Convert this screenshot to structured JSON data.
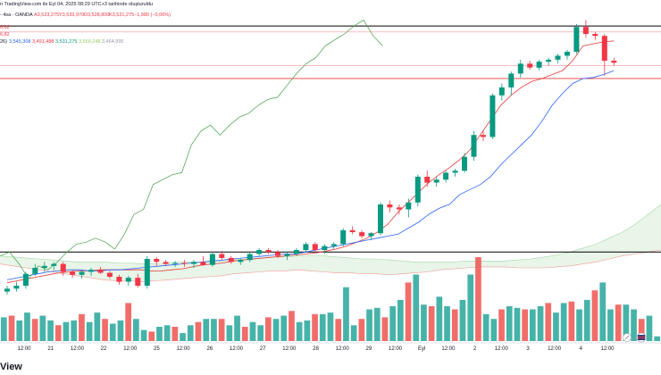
{
  "header": {
    "line0_prefix": "n TradingView.com ile Eyl 04, 2025 08:29 UTC+3 tarihinde oluşturuldu",
    "line1": [
      "- 4sa · OANDA",
      "A3,523,275",
      "Y3,533,970",
      "D3,528,800",
      "K3,521,275",
      "−1,980 (−0,06%)"
    ],
    "line2": "6,82",
    "line3": "6,82",
    "line4": [
      "26)",
      "3,545,308",
      "3,491,488",
      "3,531,275",
      "3,558,248",
      "3,464,995"
    ]
  },
  "brand_text": "View",
  "chart_data": {
    "type": "candlestick",
    "x_tick_labels": [
      "12:00",
      "21",
      "12:00",
      "22",
      "12:00",
      "25",
      "12:00",
      "26",
      "12:00",
      "27",
      "12:00",
      "28",
      "12:00",
      "29",
      "12:00",
      "Eyl",
      "12:00",
      "2",
      "12:00",
      "3",
      "12:00",
      "4",
      "12:00"
    ],
    "y_range": [
      3300,
      3590
    ],
    "horizontal_lines": [
      {
        "value": 3580,
        "color": "#000000"
      },
      {
        "value": 3574,
        "color": "#f5a9af"
      },
      {
        "value": 3540,
        "color": "#f5a9af"
      },
      {
        "value": 3527,
        "color": "#e53935"
      },
      {
        "value": 3352,
        "color": "#000000"
      }
    ],
    "candles": [
      {
        "o": 3312,
        "h": 3318,
        "l": 3309,
        "c": 3315
      },
      {
        "o": 3315,
        "h": 3322,
        "l": 3312,
        "c": 3318
      },
      {
        "o": 3318,
        "h": 3332,
        "l": 3315,
        "c": 3330
      },
      {
        "o": 3330,
        "h": 3340,
        "l": 3328,
        "c": 3336
      },
      {
        "o": 3336,
        "h": 3342,
        "l": 3332,
        "c": 3338
      },
      {
        "o": 3338,
        "h": 3342,
        "l": 3334,
        "c": 3340
      },
      {
        "o": 3340,
        "h": 3342,
        "l": 3328,
        "c": 3332
      },
      {
        "o": 3332,
        "h": 3334,
        "l": 3326,
        "c": 3329
      },
      {
        "o": 3329,
        "h": 3334,
        "l": 3325,
        "c": 3332
      },
      {
        "o": 3332,
        "h": 3336,
        "l": 3328,
        "c": 3334
      },
      {
        "o": 3334,
        "h": 3337,
        "l": 3330,
        "c": 3331
      },
      {
        "o": 3331,
        "h": 3333,
        "l": 3325,
        "c": 3327
      },
      {
        "o": 3327,
        "h": 3329,
        "l": 3319,
        "c": 3322
      },
      {
        "o": 3322,
        "h": 3328,
        "l": 3318,
        "c": 3326
      },
      {
        "o": 3326,
        "h": 3330,
        "l": 3316,
        "c": 3318
      },
      {
        "o": 3318,
        "h": 3348,
        "l": 3315,
        "c": 3345
      },
      {
        "o": 3345,
        "h": 3347,
        "l": 3338,
        "c": 3342
      },
      {
        "o": 3342,
        "h": 3344,
        "l": 3338,
        "c": 3340
      },
      {
        "o": 3340,
        "h": 3343,
        "l": 3337,
        "c": 3341
      },
      {
        "o": 3341,
        "h": 3344,
        "l": 3337,
        "c": 3340
      },
      {
        "o": 3340,
        "h": 3344,
        "l": 3336,
        "c": 3342
      },
      {
        "o": 3342,
        "h": 3348,
        "l": 3338,
        "c": 3339
      },
      {
        "o": 3339,
        "h": 3352,
        "l": 3337,
        "c": 3350
      },
      {
        "o": 3350,
        "h": 3353,
        "l": 3344,
        "c": 3346
      },
      {
        "o": 3346,
        "h": 3348,
        "l": 3340,
        "c": 3342
      },
      {
        "o": 3342,
        "h": 3346,
        "l": 3339,
        "c": 3344
      },
      {
        "o": 3344,
        "h": 3352,
        "l": 3342,
        "c": 3350
      },
      {
        "o": 3350,
        "h": 3356,
        "l": 3348,
        "c": 3354
      },
      {
        "o": 3354,
        "h": 3356,
        "l": 3350,
        "c": 3352
      },
      {
        "o": 3352,
        "h": 3354,
        "l": 3346,
        "c": 3348
      },
      {
        "o": 3348,
        "h": 3352,
        "l": 3344,
        "c": 3350
      },
      {
        "o": 3350,
        "h": 3356,
        "l": 3348,
        "c": 3354
      },
      {
        "o": 3354,
        "h": 3362,
        "l": 3352,
        "c": 3360
      },
      {
        "o": 3360,
        "h": 3362,
        "l": 3352,
        "c": 3354
      },
      {
        "o": 3354,
        "h": 3360,
        "l": 3350,
        "c": 3358
      },
      {
        "o": 3358,
        "h": 3362,
        "l": 3355,
        "c": 3360
      },
      {
        "o": 3360,
        "h": 3376,
        "l": 3358,
        "c": 3374
      },
      {
        "o": 3374,
        "h": 3378,
        "l": 3370,
        "c": 3372
      },
      {
        "o": 3372,
        "h": 3374,
        "l": 3366,
        "c": 3368
      },
      {
        "o": 3368,
        "h": 3372,
        "l": 3364,
        "c": 3371
      },
      {
        "o": 3371,
        "h": 3402,
        "l": 3369,
        "c": 3400
      },
      {
        "o": 3400,
        "h": 3404,
        "l": 3392,
        "c": 3397
      },
      {
        "o": 3397,
        "h": 3400,
        "l": 3390,
        "c": 3395
      },
      {
        "o": 3395,
        "h": 3406,
        "l": 3387,
        "c": 3402
      },
      {
        "o": 3402,
        "h": 3430,
        "l": 3398,
        "c": 3428
      },
      {
        "o": 3428,
        "h": 3434,
        "l": 3418,
        "c": 3422
      },
      {
        "o": 3422,
        "h": 3428,
        "l": 3418,
        "c": 3425
      },
      {
        "o": 3425,
        "h": 3434,
        "l": 3422,
        "c": 3432
      },
      {
        "o": 3432,
        "h": 3436,
        "l": 3428,
        "c": 3434
      },
      {
        "o": 3434,
        "h": 3452,
        "l": 3432,
        "c": 3448
      },
      {
        "o": 3448,
        "h": 3474,
        "l": 3444,
        "c": 3470
      },
      {
        "o": 3470,
        "h": 3474,
        "l": 3464,
        "c": 3468
      },
      {
        "o": 3468,
        "h": 3512,
        "l": 3466,
        "c": 3510
      },
      {
        "o": 3510,
        "h": 3522,
        "l": 3505,
        "c": 3518
      },
      {
        "o": 3518,
        "h": 3534,
        "l": 3510,
        "c": 3532
      },
      {
        "o": 3532,
        "h": 3546,
        "l": 3528,
        "c": 3542
      },
      {
        "o": 3542,
        "h": 3545,
        "l": 3536,
        "c": 3538
      },
      {
        "o": 3538,
        "h": 3546,
        "l": 3535,
        "c": 3544
      },
      {
        "o": 3544,
        "h": 3548,
        "l": 3540,
        "c": 3546
      },
      {
        "o": 3546,
        "h": 3552,
        "l": 3542,
        "c": 3550
      },
      {
        "o": 3550,
        "h": 3556,
        "l": 3546,
        "c": 3554
      },
      {
        "o": 3554,
        "h": 3582,
        "l": 3552,
        "c": 3579
      },
      {
        "o": 3579,
        "h": 3586,
        "l": 3568,
        "c": 3572
      },
      {
        "o": 3572,
        "h": 3574,
        "l": 3566,
        "c": 3570
      },
      {
        "o": 3570,
        "h": 3572,
        "l": 3530,
        "c": 3545
      },
      {
        "o": 3545,
        "h": 3548,
        "l": 3540,
        "c": 3543
      }
    ],
    "volumes": [
      15,
      16,
      13,
      18,
      14,
      16,
      13,
      10,
      12,
      13,
      17,
      12,
      18,
      14,
      11,
      13,
      24,
      14,
      7,
      6,
      9,
      10,
      9,
      5,
      10,
      12,
      14,
      14,
      14,
      10,
      16,
      9,
      12,
      10,
      15,
      14,
      16,
      19,
      12,
      13,
      17,
      17,
      18,
      14,
      34,
      10,
      14,
      20,
      21,
      15,
      22,
      26,
      37,
      42,
      23,
      22,
      28,
      22,
      20,
      26,
      42,
      53,
      17,
      14,
      20,
      22,
      21,
      20,
      20,
      22,
      24,
      18,
      24,
      25,
      20,
      26,
      32,
      37,
      20,
      23,
      23,
      20,
      14,
      16,
      3
    ],
    "baseline_line": [
      3321,
      3323,
      3325,
      3327,
      3329,
      3331,
      3332,
      3333,
      3333,
      3334,
      3334,
      3334,
      3334,
      3334,
      3333,
      3333,
      3334,
      3335,
      3337,
      3339,
      3340,
      3341,
      3343,
      3344,
      3345,
      3346,
      3347,
      3348,
      3349,
      3350,
      3351,
      3353,
      3355,
      3358,
      3362,
      3366,
      3372,
      3380,
      3392,
      3402,
      3412,
      3422,
      3430,
      3437,
      3445,
      3455,
      3470,
      3485,
      3500,
      3510,
      3518,
      3524,
      3527,
      3531,
      3535,
      3545,
      3560,
      3562,
      3564,
      3565
    ],
    "conversion_line": [
      3324,
      3326,
      3328,
      3330,
      3332,
      3333,
      3334,
      3334,
      3333,
      3333,
      3334,
      3334,
      3335,
      3336,
      3337,
      3338,
      3339,
      3340,
      3341,
      3342,
      3343,
      3344,
      3345,
      3346,
      3347,
      3348,
      3349,
      3350,
      3350,
      3352,
      3354,
      3356,
      3358,
      3360,
      3362,
      3364,
      3366,
      3368,
      3370,
      3376,
      3382,
      3390,
      3396,
      3400,
      3410,
      3415,
      3420,
      3428,
      3440,
      3450,
      3460,
      3470,
      3484,
      3500,
      3512,
      3522,
      3527,
      3528,
      3531,
      3535
    ],
    "lagging_line": [
      3348,
      3352,
      3340,
      3325,
      3338,
      3334,
      3342,
      3352,
      3360,
      3362,
      3366,
      3362,
      3355,
      3370,
      3390,
      3395,
      3420,
      3425,
      3430,
      3432,
      3460,
      3474,
      3480,
      3470,
      3480,
      3488,
      3492,
      3500,
      3506,
      3508,
      3520,
      3532,
      3542,
      3548,
      3560,
      3566,
      3572,
      3580,
      3586,
      3570,
      3560
    ],
    "kumo_a": [
      3348,
      3347,
      3346,
      3345,
      3344,
      3343,
      3342,
      3342,
      3342,
      3341,
      3341,
      3340,
      3340,
      3341,
      3342,
      3342,
      3342,
      3343,
      3344,
      3345,
      3346,
      3347,
      3347,
      3348,
      3348,
      3348,
      3347,
      3346,
      3345,
      3345,
      3344,
      3343,
      3342,
      3342,
      3342,
      3342,
      3343,
      3343,
      3343,
      3343,
      3344,
      3345,
      3347,
      3349,
      3352,
      3356,
      3360,
      3366,
      3372,
      3380,
      3390,
      3400
    ],
    "kumo_b": [
      3340,
      3338,
      3336,
      3334,
      3332,
      3330,
      3328,
      3326,
      3324,
      3323,
      3323,
      3322,
      3323,
      3324,
      3325,
      3326,
      3327,
      3328,
      3330,
      3331,
      3332,
      3333,
      3333,
      3334,
      3333,
      3332,
      3331,
      3331,
      3330,
      3330,
      3329,
      3330,
      3331,
      3332,
      3334,
      3335,
      3336,
      3337,
      3337,
      3337,
      3336,
      3336,
      3336,
      3337,
      3338,
      3340,
      3342,
      3345,
      3348,
      3350,
      3352,
      3354
    ]
  }
}
